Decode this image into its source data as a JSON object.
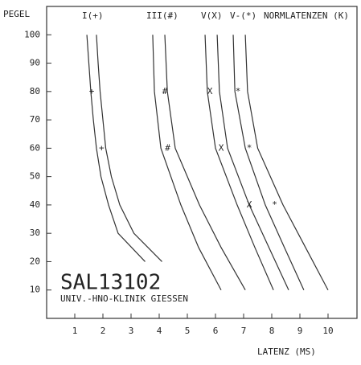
{
  "chart_data": {
    "type": "line",
    "ylabel": "PEGEL",
    "xlabel": "LATENZ (MS)",
    "column_labels": [
      "I(+)",
      "III(#)",
      "V(X)",
      "V-(*)",
      "NORMLATENZEN (K)"
    ],
    "annotations": [
      "SAL13102",
      "UNIV.-HNO-KLINIK GIESSEN"
    ],
    "xlim": [
      0,
      11
    ],
    "ylim": [
      0,
      110
    ],
    "xticks": [
      1,
      2,
      3,
      4,
      5,
      6,
      7,
      8,
      9,
      10
    ],
    "yticks": [
      10,
      20,
      30,
      40,
      50,
      60,
      70,
      80,
      90,
      100
    ],
    "color": "#333333",
    "curves": [
      {
        "x": [
          1.43,
          1.5,
          1.57,
          1.66,
          1.77,
          1.93,
          2.2,
          2.54,
          3.5
        ],
        "y": [
          100,
          90,
          80,
          70,
          60,
          50,
          40,
          30,
          20
        ]
      },
      {
        "x": [
          1.77,
          1.83,
          1.9,
          2.0,
          2.1,
          2.3,
          2.6,
          3.1,
          4.1
        ],
        "y": [
          100,
          90,
          80,
          70,
          60,
          50,
          40,
          30,
          20
        ]
      },
      {
        "x": [
          3.77,
          3.83,
          4.06,
          4.77,
          5.4,
          6.2
        ],
        "y": [
          100,
          80,
          60,
          40,
          25,
          10
        ]
      },
      {
        "x": [
          4.2,
          4.29,
          4.57,
          5.43,
          6.2,
          7.06
        ],
        "y": [
          100,
          80,
          60,
          40,
          25,
          10
        ]
      },
      {
        "x": [
          5.63,
          5.71,
          6.0,
          6.77,
          7.4,
          8.06
        ],
        "y": [
          100,
          80,
          60,
          40,
          25,
          10
        ]
      },
      {
        "x": [
          6.06,
          6.14,
          6.43,
          7.2,
          7.9,
          8.6
        ],
        "y": [
          100,
          80,
          60,
          40,
          25,
          10
        ]
      },
      {
        "x": [
          6.63,
          6.69,
          7.06,
          7.77,
          8.45,
          9.14
        ],
        "y": [
          100,
          80,
          60,
          40,
          25,
          10
        ]
      },
      {
        "x": [
          7.06,
          7.14,
          7.5,
          8.4,
          9.2,
          10.0
        ],
        "y": [
          100,
          80,
          60,
          40,
          25,
          10
        ]
      }
    ],
    "points": [
      {
        "symbol": "+",
        "x": [
          1.6,
          1.95
        ],
        "y": [
          80,
          60
        ]
      },
      {
        "symbol": "#",
        "x": [
          4.2,
          4.3
        ],
        "y": [
          80,
          60
        ]
      },
      {
        "symbol": "X",
        "x": [
          5.8,
          6.2,
          7.2
        ],
        "y": [
          80,
          60,
          40
        ]
      },
      {
        "symbol": "*",
        "x": [
          6.8,
          7.2,
          8.1
        ],
        "y": [
          80,
          60,
          40
        ]
      }
    ]
  }
}
